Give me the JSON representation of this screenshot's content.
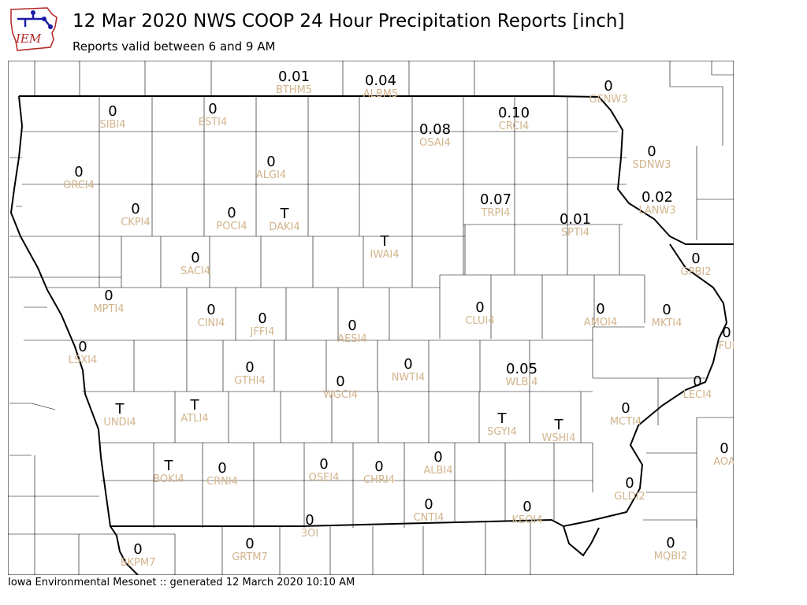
{
  "header": {
    "title": "12 Mar 2020 NWS COOP 24 Hour Precipitation Reports [inch]",
    "subtitle": "Reports valid between 6 and 9 AM",
    "logo_text": "IEM"
  },
  "footer": {
    "text": "Iowa Environmental Mesonet :: generated 12 March 2020 10:10 AM"
  },
  "colors": {
    "value": "#000000",
    "station": "#d2b48c",
    "logo": "#1a1aa6",
    "logo_text": "#b22222"
  },
  "stations": [
    {
      "id": "BTHM5",
      "value": "0.01"
    },
    {
      "id": "ALBM5",
      "value": "0.04"
    },
    {
      "id": "GENW3",
      "value": "0"
    },
    {
      "id": "SIBI4",
      "value": "0"
    },
    {
      "id": "ESTI4",
      "value": "0"
    },
    {
      "id": "OSAI4",
      "value": "0.08"
    },
    {
      "id": "CRCI4",
      "value": "0.10"
    },
    {
      "id": "SDNW3",
      "value": "0"
    },
    {
      "id": "ORCI4",
      "value": "0"
    },
    {
      "id": "ALGI4",
      "value": "0"
    },
    {
      "id": "LANW3",
      "value": "0.02"
    },
    {
      "id": "CKPI4",
      "value": "0"
    },
    {
      "id": "POCI4",
      "value": "0"
    },
    {
      "id": "DAKI4",
      "value": "T"
    },
    {
      "id": "TRPI4",
      "value": "0.07"
    },
    {
      "id": "SPTI4",
      "value": "0.01"
    },
    {
      "id": "IWAI4",
      "value": "T"
    },
    {
      "id": "SACI4",
      "value": "0"
    },
    {
      "id": "GPBI2",
      "value": "0"
    },
    {
      "id": "MPTI4",
      "value": "0"
    },
    {
      "id": "CINI4",
      "value": "0"
    },
    {
      "id": "JFFI4",
      "value": "0"
    },
    {
      "id": "CLUI4",
      "value": "0"
    },
    {
      "id": "AMOI4",
      "value": "0"
    },
    {
      "id": "MKTI4",
      "value": "0"
    },
    {
      "id": "AESI4",
      "value": "0"
    },
    {
      "id": "FUI",
      "value": "0"
    },
    {
      "id": "LSXI4",
      "value": "0"
    },
    {
      "id": "GTHI4",
      "value": "0"
    },
    {
      "id": "NWTI4",
      "value": "0"
    },
    {
      "id": "WLBI4",
      "value": "0.05"
    },
    {
      "id": "WGCI4",
      "value": "0"
    },
    {
      "id": "LECI4",
      "value": "0"
    },
    {
      "id": "UNDI4",
      "value": "T"
    },
    {
      "id": "ATLI4",
      "value": "T"
    },
    {
      "id": "SGYI4",
      "value": "T"
    },
    {
      "id": "WSHI4",
      "value": "T"
    },
    {
      "id": "MCTI4",
      "value": "0"
    },
    {
      "id": "BOKI4",
      "value": "T"
    },
    {
      "id": "CRNI4",
      "value": "0"
    },
    {
      "id": "OSEI4",
      "value": "0"
    },
    {
      "id": "CHRI4",
      "value": "0"
    },
    {
      "id": "ALBI4",
      "value": "0"
    },
    {
      "id": "AOA",
      "value": "0"
    },
    {
      "id": "GLDI2",
      "value": "0"
    },
    {
      "id": "CNTI4",
      "value": "0"
    },
    {
      "id": "KEOI4",
      "value": "0"
    },
    {
      "id": "3OI",
      "value": "0"
    },
    {
      "id": "BKPM7",
      "value": "0"
    },
    {
      "id": "GRTM7",
      "value": "0"
    },
    {
      "id": "MQBI2",
      "value": "0"
    }
  ]
}
